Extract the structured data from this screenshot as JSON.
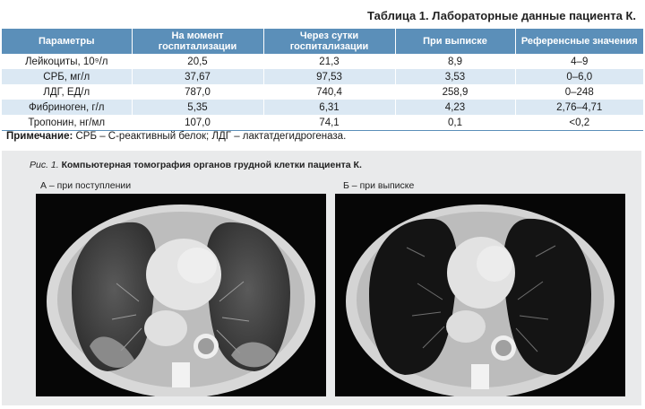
{
  "table": {
    "title": "Таблица 1. Лабораторные данные пациента К.",
    "headers": [
      "Параметры",
      "На момент госпитализации",
      "Через сутки госпитализации",
      "При выписке",
      "Референсные значения"
    ],
    "rows": [
      [
        "Лейкоциты, 10⁹/л",
        "20,5",
        "21,3",
        "8,9",
        "4–9"
      ],
      [
        "СРБ, мг/л",
        "37,67",
        "97,53",
        "3,53",
        "0–6,0"
      ],
      [
        "ЛДГ, ЕД/л",
        "787,0",
        "740,4",
        "258,9",
        "0–248"
      ],
      [
        "Фибриноген, г/л",
        "5,35",
        "6,31",
        "4,23",
        "2,76–4,71"
      ],
      [
        "Тропонин, нг/мл",
        "107,0",
        "74,1",
        "0,1",
        "<0,2"
      ]
    ],
    "note_label": "Примечание:",
    "note_text": " СРБ – С-реактивный белок; ЛДГ – лактатдегидрогеназа."
  },
  "figure": {
    "caption_prefix": "Рис. 1.",
    "caption_text": " Компьютерная томография органов грудной клетки пациента К.",
    "panel_a": "А – при поступлении",
    "panel_b": "Б – при выписке"
  }
}
